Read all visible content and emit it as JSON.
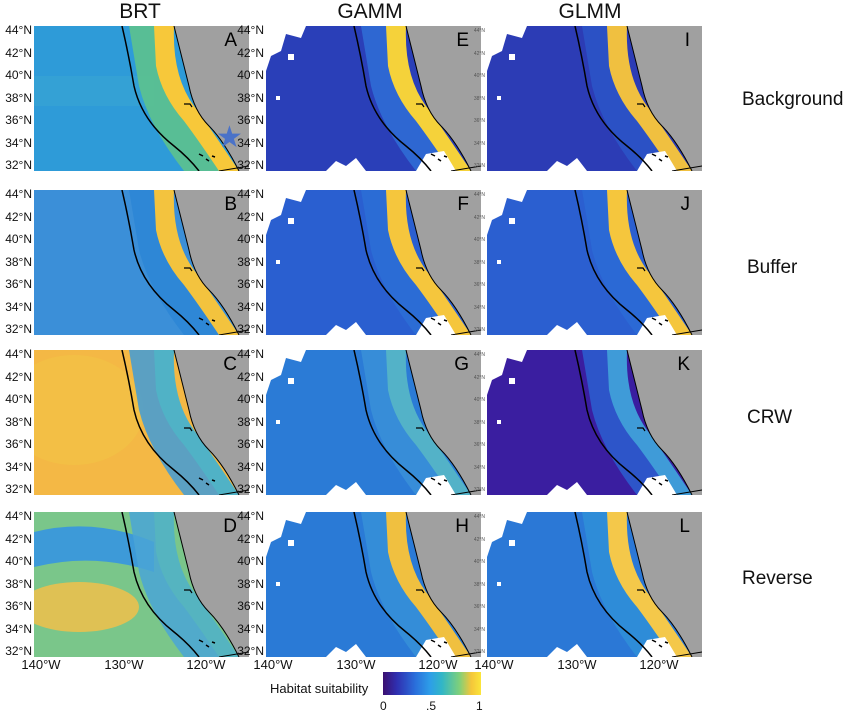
{
  "columns": [
    "BRT",
    "GAMM",
    "GLMM"
  ],
  "rows": [
    "Background",
    "Buffer",
    "CRW",
    "Reverse"
  ],
  "panel_labels": [
    [
      "A",
      "E",
      "I"
    ],
    [
      "B",
      "F",
      "J"
    ],
    [
      "C",
      "G",
      "K"
    ],
    [
      "D",
      "H",
      "L"
    ]
  ],
  "lat_ticks": [
    "44°N",
    "42°N",
    "40°N",
    "38°N",
    "36°N",
    "34°N",
    "32°N"
  ],
  "lon_ticks": [
    "140°W",
    "130°W",
    "120°W"
  ],
  "legend": {
    "label": "Habitat suitability",
    "ticks": [
      "0",
      ".5",
      "1"
    ]
  },
  "colors": {
    "land": "#a0a0a0",
    "low": "#3b0f70",
    "mid": "#2d9ee8",
    "high": "#fbe53a",
    "coast_line": "#000000"
  },
  "marker": {
    "icon": "star-icon",
    "color": "#4a72c8"
  }
}
